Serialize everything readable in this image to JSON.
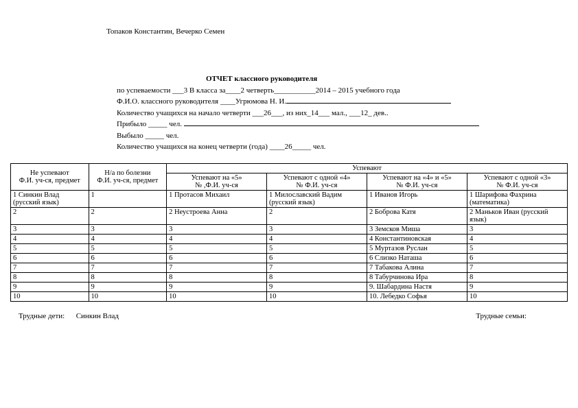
{
  "top_names": "Топаков Константин, Вечерко Семен",
  "title": "ОТЧЕТ    классного руководителя",
  "line2": "по успеваемости ___3 В класса за____2 четверть___________2014 – 2015  учебного года",
  "line3_prefix": "Ф.И.О. классного руководителя ____Угрюмова Н. И.",
  "line4": "Количество учащихся на начало четверти ___26___, из них_14___ мал., ___12_ дев..",
  "line5": "Прибыло _____ чел. ",
  "line6": "Выбыло _____ чел.",
  "line7": "Количество учащихся на конец четверти (года) ____26_____ чел.",
  "headers": {
    "h1": "Не успевают",
    "h1b": "Ф.И. уч-ся, предмет",
    "h2": "Н/а по болезни",
    "h2b": "Ф.И. уч-ся, предмет",
    "h3": "Успевают",
    "h3a": "Успевают на «5»",
    "h3a2": "№ ,Ф.И. уч-ся",
    "h3b": "Успевают с одной «4»",
    "h3b2": "№ Ф.И. уч-ся",
    "h3c": "Успевают на «4» и «5»",
    "h3c2": "№ Ф.И. уч-ся",
    "h3d": "Успевают с одной «3»",
    "h3d2": "№ Ф.И. уч-ся"
  },
  "rows": [
    [
      "1 Синкин Влад (русский язык)",
      "1",
      "1 Протасов Михаил",
      "1 Милославский Вадим (русский язык)",
      "1 Иванов Игорь",
      "1 Шарифова Фахрина (математика)"
    ],
    [
      "2",
      "2",
      "2 Неустроева Анна",
      "2",
      "2 Боброва Катя",
      "2 Маньков Иван (русский язык)"
    ],
    [
      "3",
      "3",
      "3",
      "3",
      "3 Земсков Миша",
      "3"
    ],
    [
      "4",
      "4",
      "4",
      "4",
      "4 Константиновская",
      "4"
    ],
    [
      "5",
      "5",
      "5",
      "5",
      "5 Муртазов Руслан",
      "5"
    ],
    [
      "6",
      "6",
      "6",
      "6",
      "6 Слизко Наташа",
      "6"
    ],
    [
      "7",
      "7",
      "7",
      "7",
      "7 Табакова Алина",
      "7"
    ],
    [
      "8",
      "8",
      "8",
      "8",
      "8 Табурчинова Ира",
      "8"
    ],
    [
      "9",
      "9",
      "9",
      "9",
      "9. Шабардина Настя",
      "9"
    ],
    [
      "10",
      "10",
      "10",
      "10",
      "10. Лебедко Софья",
      "10"
    ]
  ],
  "footer_left_label": "Трудные дети:",
  "footer_left_value": "Синкин Влад",
  "footer_right_label": "Трудные семьи:",
  "colwidths": [
    "14%",
    "14%",
    "18%",
    "18%",
    "18%",
    "18%"
  ],
  "colors": {
    "text": "#000000",
    "bg": "#ffffff",
    "border": "#000000"
  }
}
